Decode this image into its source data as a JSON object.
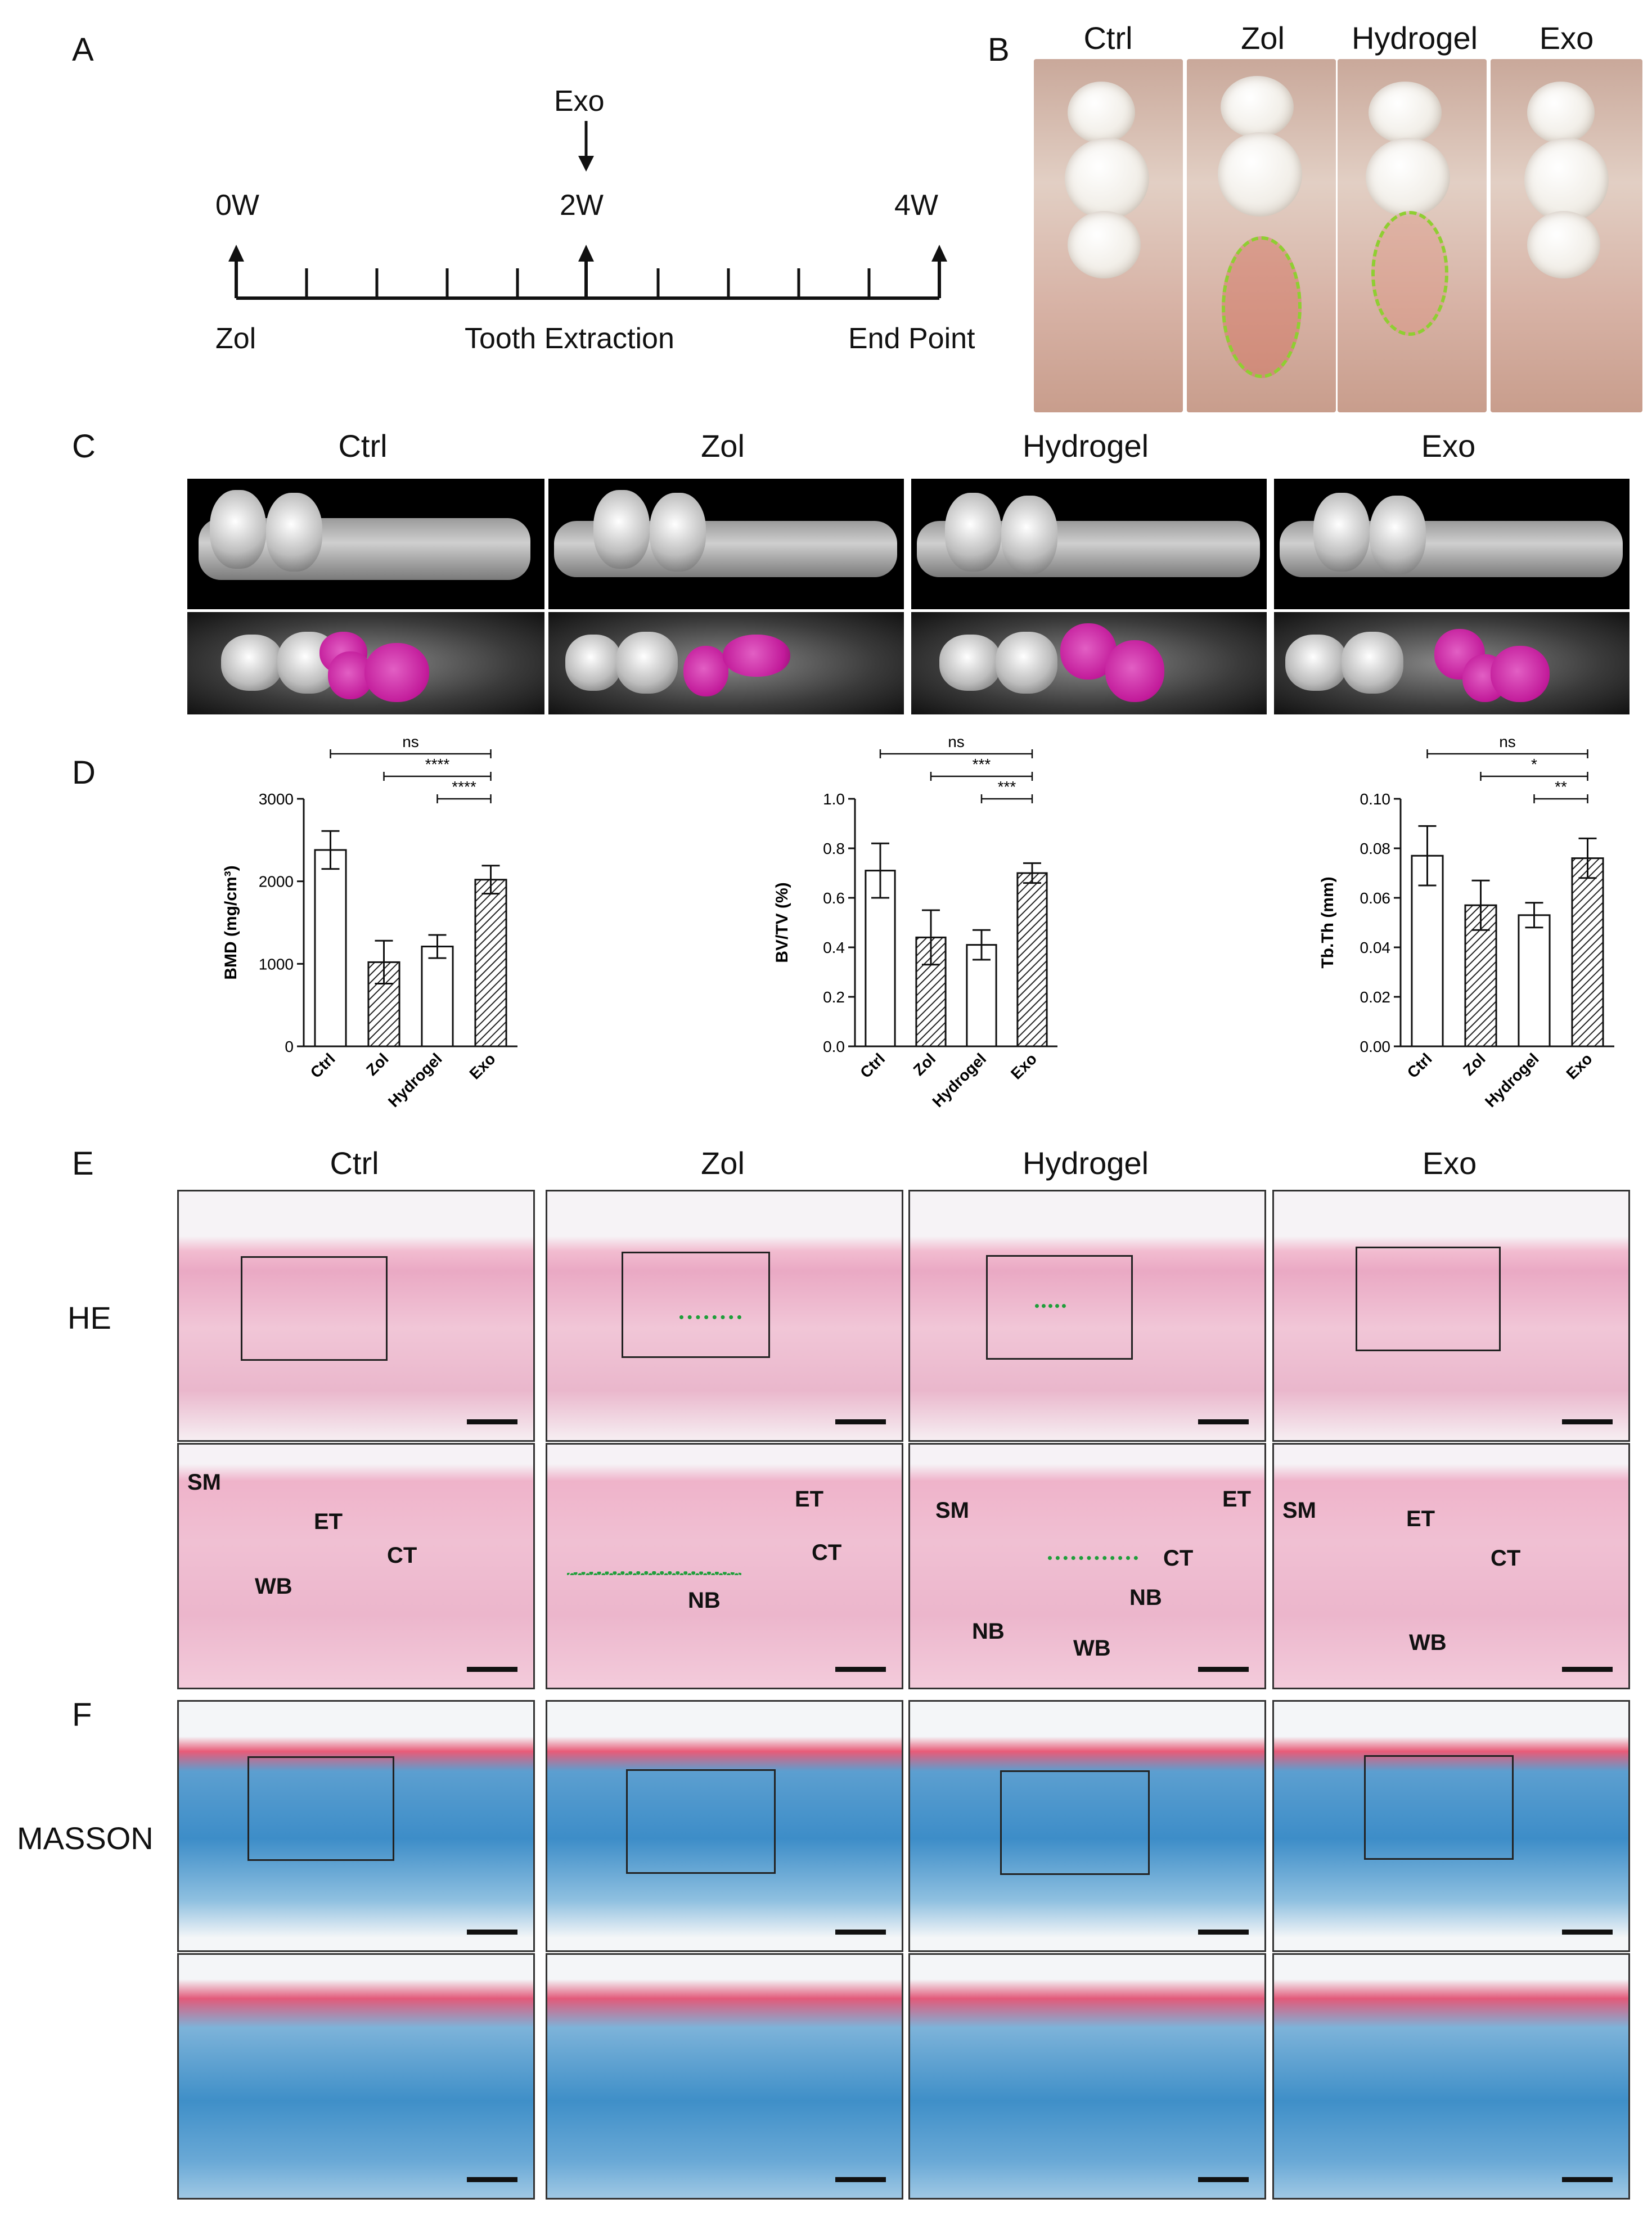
{
  "panel_labels": {
    "A": "A",
    "B": "B",
    "C": "C",
    "D": "D",
    "E": "E",
    "F": "F"
  },
  "timeline": {
    "exo_label": "Exo",
    "weeks": [
      "0W",
      "2W",
      "4W"
    ],
    "events": [
      "Zol",
      "Tooth Extraction",
      "End Point"
    ]
  },
  "groups": [
    "Ctrl",
    "Zol",
    "Hydrogel",
    "Exo"
  ],
  "stain_labels": {
    "he": "HE",
    "masson": "MASSON"
  },
  "he_zoom_labels": {
    "ctrl": [
      "SM",
      "ET",
      "CT",
      "WB"
    ],
    "zol": [
      "ET",
      "CT",
      "NB"
    ],
    "hydrogel": [
      "SM",
      "ET",
      "CT",
      "NB",
      "NB",
      "WB"
    ],
    "exo": [
      "SM",
      "ET",
      "CT",
      "WB"
    ]
  },
  "chart_data": [
    {
      "type": "bar",
      "categories": [
        "Ctrl",
        "Zol",
        "Hydrogel",
        "Exo"
      ],
      "values": [
        2380,
        1020,
        1210,
        2020
      ],
      "errors": [
        230,
        260,
        140,
        170
      ],
      "hatched": [
        false,
        true,
        false,
        true
      ],
      "ylabel": "BMD (mg/cm³)",
      "ylim": [
        0,
        3000
      ],
      "yticks": [
        "0",
        "1000",
        "2000",
        "3000"
      ],
      "comparisons": [
        {
          "from": 0,
          "to": 3,
          "label": "ns"
        },
        {
          "from": 1,
          "to": 3,
          "label": "****"
        },
        {
          "from": 2,
          "to": 3,
          "label": "****"
        }
      ]
    },
    {
      "type": "bar",
      "categories": [
        "Ctrl",
        "Zol",
        "Hydrogel",
        "Exo"
      ],
      "values": [
        0.71,
        0.44,
        0.41,
        0.7
      ],
      "errors": [
        0.11,
        0.11,
        0.06,
        0.04
      ],
      "hatched": [
        false,
        true,
        false,
        true
      ],
      "ylabel": "BV/TV (%)",
      "ylim": [
        0,
        1.0
      ],
      "yticks": [
        "0.0",
        "0.2",
        "0.4",
        "0.6",
        "0.8",
        "1.0"
      ],
      "comparisons": [
        {
          "from": 0,
          "to": 3,
          "label": "ns"
        },
        {
          "from": 1,
          "to": 3,
          "label": "***"
        },
        {
          "from": 2,
          "to": 3,
          "label": "***"
        }
      ]
    },
    {
      "type": "bar",
      "categories": [
        "Ctrl",
        "Zol",
        "Hydrogel",
        "Exo"
      ],
      "values": [
        0.077,
        0.057,
        0.053,
        0.076
      ],
      "errors": [
        0.012,
        0.01,
        0.005,
        0.008
      ],
      "hatched": [
        false,
        true,
        false,
        true
      ],
      "ylabel": "Tb.Th (mm)",
      "ylim": [
        0,
        0.1
      ],
      "yticks": [
        "0.00",
        "0.02",
        "0.04",
        "0.06",
        "0.08",
        "0.10"
      ],
      "comparisons": [
        {
          "from": 0,
          "to": 3,
          "label": "ns"
        },
        {
          "from": 1,
          "to": 3,
          "label": "*"
        },
        {
          "from": 2,
          "to": 3,
          "label": "**"
        }
      ]
    }
  ]
}
